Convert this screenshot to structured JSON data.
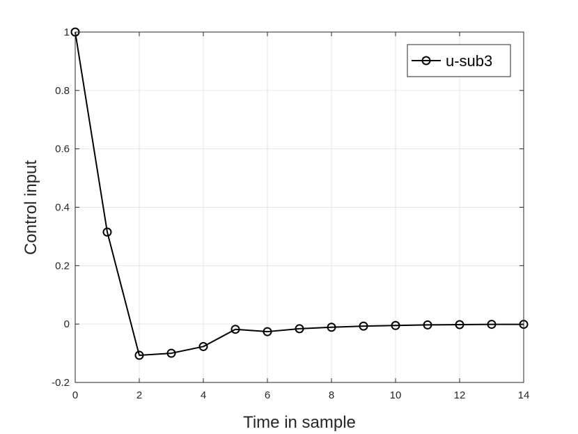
{
  "chart_data": {
    "type": "line",
    "xlabel": "Time in sample",
    "ylabel": "Control input",
    "xlim": [
      0,
      14
    ],
    "ylim": [
      -0.2,
      1
    ],
    "xticks": [
      0,
      2,
      4,
      6,
      8,
      10,
      12,
      14
    ],
    "yticks": [
      -0.2,
      0,
      0.2,
      0.4,
      0.6,
      0.8,
      1
    ],
    "ytick_labels": [
      "-0.2",
      "0",
      "0.2",
      "0.4",
      "0.6",
      "0.8",
      "1"
    ],
    "xtick_labels": [
      "0",
      "2",
      "4",
      "6",
      "8",
      "10",
      "12",
      "14"
    ],
    "grid": true,
    "legend_position": "top-right",
    "series": [
      {
        "name": "u-sub3",
        "color": "#000000",
        "marker": "circle",
        "x": [
          0,
          1,
          2,
          3,
          4,
          5,
          6,
          7,
          8,
          9,
          10,
          11,
          12,
          13,
          14
        ],
        "y": [
          1.0,
          0.315,
          -0.107,
          -0.1,
          -0.077,
          -0.018,
          -0.026,
          -0.016,
          -0.011,
          -0.007,
          -0.005,
          -0.003,
          -0.002,
          -0.001,
          -0.001
        ]
      }
    ]
  }
}
